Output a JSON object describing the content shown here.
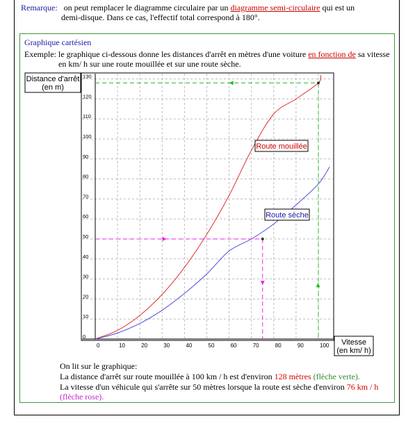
{
  "remark": {
    "label": "Remarque:",
    "line1_pre": "on peut remplacer le diagramme circulaire par un",
    "line1_link": "diagramme semi-circulaire",
    "line1_post": "qui est un",
    "line2": "demi-disque. Dans ce cas, l'effectif total correspond à 180°."
  },
  "section": {
    "title": "Graphique cartésien",
    "example_line1_pre": "Exemple:  le graphique ci-dessous donne les distances d'arrêt en mètres d'une voiture",
    "example_line1_link": "en fonction de",
    "example_line1_post": "sa vitesse",
    "example_line2": "en km/ h sur une route mouillée  et sur une route sèche."
  },
  "chart_data": {
    "type": "line",
    "xlabel": "Vitesse (en km/ h)",
    "ylabel": "Distance d'arrêt (en m)",
    "xlim": [
      0,
      105
    ],
    "ylim": [
      0,
      130
    ],
    "x_ticks": [
      "0",
      "10",
      "20",
      "30",
      "40",
      "50",
      "60",
      "70",
      "80",
      "90",
      "100"
    ],
    "y_ticks": [
      "0",
      "10",
      "20",
      "30",
      "40",
      "50",
      "60",
      "70",
      "80",
      "90",
      "100",
      "110",
      "120",
      "130"
    ],
    "grid": true,
    "series": [
      {
        "name": "Route mouillée",
        "color": "#e03030",
        "x": [
          0,
          10,
          20,
          30,
          40,
          50,
          60,
          70,
          80,
          90,
          100,
          101
        ],
        "y": [
          0,
          4.3,
          11.8,
          22.3,
          35.8,
          52.3,
          71.8,
          94.3,
          112.5,
          120,
          128,
          132
        ]
      },
      {
        "name": "Route sèche",
        "color": "#4a4ae0",
        "x": [
          0,
          10,
          20,
          30,
          40,
          50,
          60,
          70,
          80,
          90,
          100,
          105
        ],
        "y": [
          0,
          3,
          7.8,
          14.4,
          22.8,
          32.5,
          44,
          50,
          57.5,
          67,
          77.5,
          86
        ]
      }
    ],
    "annotations": [
      {
        "label": "flèche verte",
        "color": "#22bb22",
        "point": [
          100,
          128
        ]
      },
      {
        "label": "flèche rose",
        "color": "#ee22ee",
        "point": [
          75,
          50
        ]
      }
    ]
  },
  "conclusion": {
    "intro": "On lit sur le graphique:",
    "line1_pre": "La distance d'arrêt sur route mouillée à 100 km / h est d'environ",
    "line1_value": "128 mètres",
    "line1_note": "(flèche verte).",
    "line2_pre": "La vitesse d'un véhicule  qui s'arrête  sur  50 mètres lorsque la route est sèche d'environ",
    "line2_value": "76 km / h",
    "line3_note": "(flèche rose)."
  }
}
